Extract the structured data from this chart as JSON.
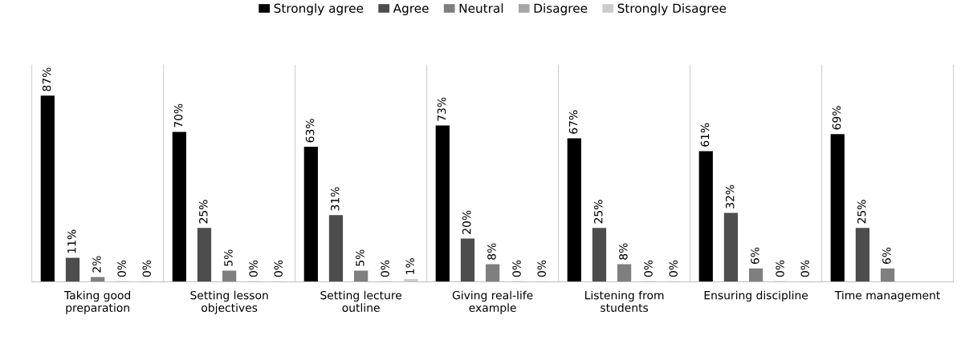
{
  "chart_data": {
    "type": "bar",
    "categories": [
      "Taking good preparation",
      "Setting lesson objectives",
      "Setting lecture outline",
      "Giving real-life example",
      "Listening from students",
      "Ensuring discipline",
      "Time management"
    ],
    "series": [
      {
        "name": "Strongly agree",
        "color": "#000000",
        "values": [
          87,
          70,
          63,
          73,
          67,
          61,
          69
        ],
        "value_labels": [
          "87%",
          "70%",
          "63%",
          "73%",
          "67%",
          "61%",
          "69%"
        ]
      },
      {
        "name": "Agree",
        "color": "#4d4d4d",
        "values": [
          11,
          25,
          31,
          20,
          25,
          32,
          25
        ],
        "value_labels": [
          "11%",
          "25%",
          "31%",
          "20%",
          "25%",
          "32%",
          "25%"
        ]
      },
      {
        "name": "Neutral",
        "color": "#7f7f7f",
        "values": [
          2,
          5,
          5,
          8,
          8,
          6,
          6
        ],
        "value_labels": [
          "2%",
          "5%",
          "5%",
          "8%",
          "8%",
          "6%",
          "6%"
        ]
      },
      {
        "name": "Disagree",
        "color": "#a6a6a6",
        "values": [
          0,
          0,
          0,
          0,
          0,
          0,
          null
        ],
        "value_labels": [
          "0%",
          "0%",
          "0%",
          "0%",
          "0%",
          "0%",
          null
        ]
      },
      {
        "name": "Strongly Disagree",
        "color": "#cccccc",
        "values": [
          0,
          0,
          1,
          0,
          0,
          0,
          null
        ],
        "value_labels": [
          "0%",
          "0%",
          "1%",
          "0%",
          "0%",
          "0%",
          null
        ]
      }
    ],
    "legend": "top",
    "grid": false
  }
}
